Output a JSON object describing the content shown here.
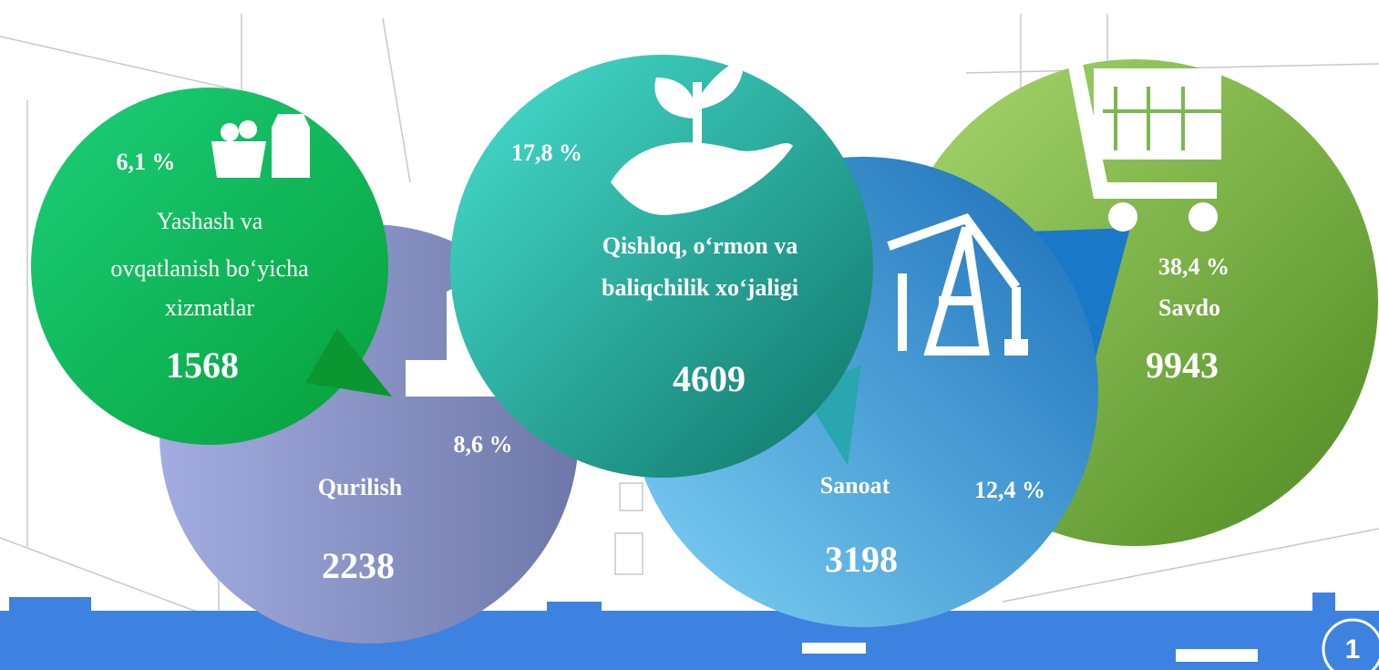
{
  "items": [
    {
      "percent": "38,4 %",
      "label": [
        "Savdo"
      ],
      "value": "9943"
    },
    {
      "percent": "12,4 %",
      "label": [
        "Sanoat"
      ],
      "value": "3198"
    },
    {
      "percent": "8,6 %",
      "label": [
        "Qurilish"
      ],
      "value": "2238"
    },
    {
      "percent": "17,8 %",
      "label": [
        "Qishloq, o‘rmon va",
        "baliqchilik xo‘jaligi"
      ],
      "value": "4609"
    },
    {
      "percent": "6,1 %",
      "label": [
        "Yashash va",
        "ovqatlanish bo‘yicha",
        "xizmatlar"
      ],
      "value": "1568"
    }
  ],
  "page_number": "1"
}
